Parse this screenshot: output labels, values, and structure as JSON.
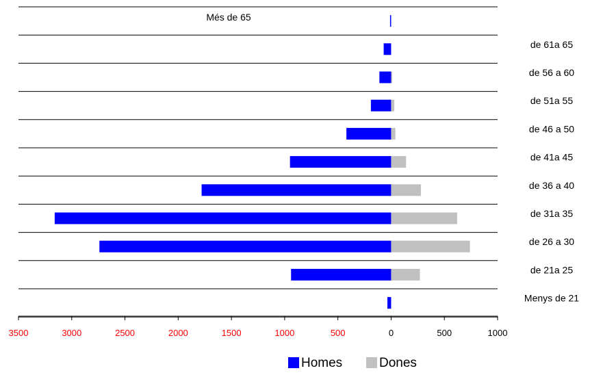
{
  "chart_data": {
    "type": "bar",
    "orientation": "horizontal-diverging",
    "categories": [
      "Menys de 21",
      "de 21a 25",
      "de 26 a 30",
      "de 31a 35",
      "de 36 a 40",
      "de 41a 45",
      "de 46 a 50",
      "de 51a 55",
      "de 56 a 60",
      "de 61a 65",
      "Més de 65"
    ],
    "series": [
      {
        "name": "Homes",
        "values": [
          35,
          940,
          2740,
          3160,
          1780,
          950,
          420,
          190,
          110,
          70,
          10
        ],
        "color": "#0000ff"
      },
      {
        "name": "Dones",
        "values": [
          0,
          270,
          740,
          620,
          280,
          140,
          40,
          30,
          10,
          0,
          0
        ],
        "color": "#c0c0c0"
      }
    ],
    "xticks": [
      {
        "value": -3500,
        "label": "3500",
        "color": "#ff0000"
      },
      {
        "value": -3000,
        "label": "3000",
        "color": "#ff0000"
      },
      {
        "value": -2500,
        "label": "2500",
        "color": "#ff0000"
      },
      {
        "value": -2000,
        "label": "2000",
        "color": "#ff0000"
      },
      {
        "value": -1500,
        "label": "1500",
        "color": "#ff0000"
      },
      {
        "value": -1000,
        "label": "1000",
        "color": "#ff0000"
      },
      {
        "value": -500,
        "label": "500",
        "color": "#ff0000"
      },
      {
        "value": 0,
        "label": "0",
        "color": "#000000"
      },
      {
        "value": 500,
        "label": "500",
        "color": "#000000"
      },
      {
        "value": 1000,
        "label": "1000",
        "color": "#000000"
      }
    ],
    "xlim": [
      -3500,
      1000
    ],
    "title": "",
    "xlabel": "",
    "ylabel": "",
    "legend": {
      "placement": "bottom-right",
      "entries": [
        "Homes",
        "Dones"
      ]
    },
    "grid": "horizontal separators between categories"
  }
}
